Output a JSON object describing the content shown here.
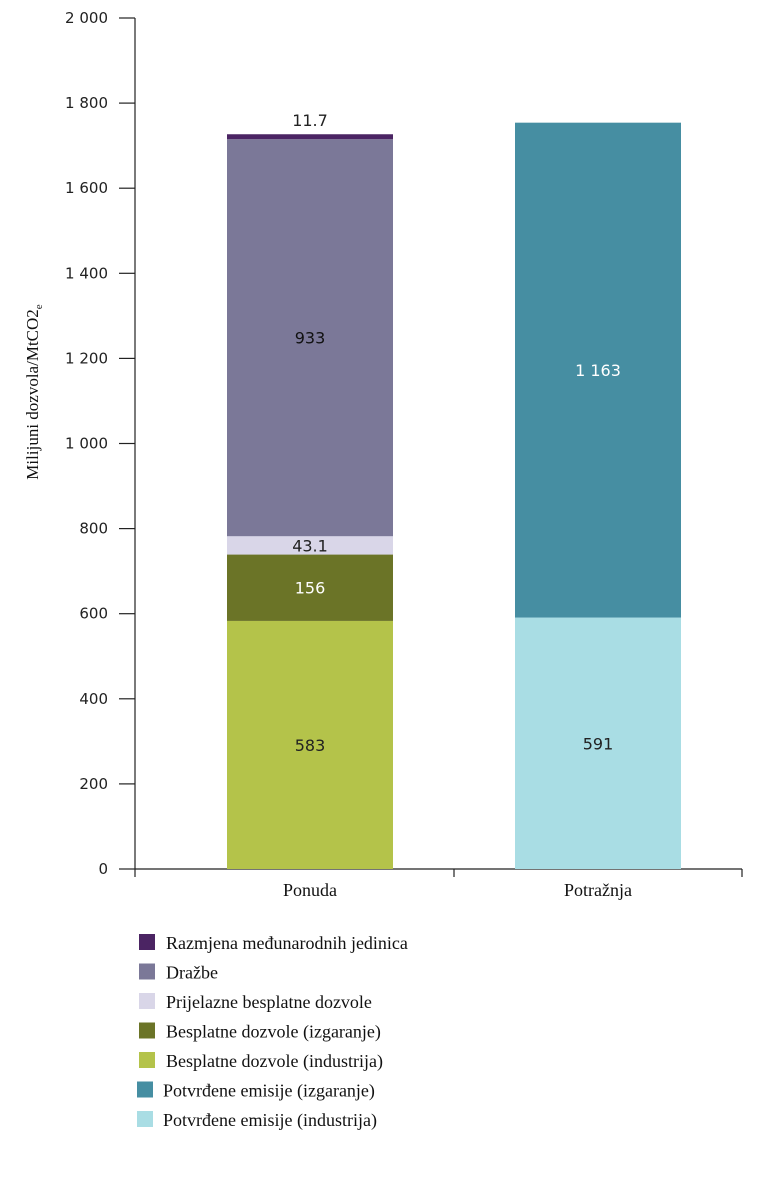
{
  "chart_data": {
    "type": "bar",
    "stacked": true,
    "ylabel_main": "Milijuni dozvola/MtCO2",
    "ylabel_sub": "e",
    "ylim": [
      0,
      2000
    ],
    "yticks": [
      0,
      200,
      400,
      600,
      800,
      1000,
      1200,
      1400,
      1600,
      1800,
      2000
    ],
    "ytick_labels": [
      "0",
      "200",
      "400",
      "600",
      "800",
      "1 000",
      "1 200",
      "1 400",
      "1 600",
      "1 800",
      "2 000"
    ],
    "categories": [
      "Ponuda",
      "Potražnja"
    ],
    "series": [
      {
        "name": "Besplatne dozvole (industrija)",
        "color": "#b4c34a",
        "values": [
          583,
          0
        ],
        "labels": [
          "583",
          ""
        ],
        "label_color": "#222222"
      },
      {
        "name": "Besplatne dozvole (izgaranje)",
        "color": "#6b7427",
        "values": [
          156,
          0
        ],
        "labels": [
          "156",
          ""
        ],
        "label_color": "#ffffff"
      },
      {
        "name": "Prijelazne besplatne dozvole",
        "color": "#d9d6e8",
        "values": [
          43.1,
          0
        ],
        "labels": [
          "43.1",
          ""
        ],
        "label_color": "#222222"
      },
      {
        "name": "Dražbe",
        "color": "#7b7898",
        "values": [
          933,
          0
        ],
        "labels": [
          "933",
          ""
        ],
        "label_color": "#111111"
      },
      {
        "name": "Razmjena međunarodnih jedinica",
        "color": "#4b2463",
        "values": [
          11.7,
          0
        ],
        "labels": [
          "11.7",
          ""
        ],
        "label_color": "#222222",
        "label_above": true
      },
      {
        "name": "Potvrđene emisije (industrija)",
        "color": "#a9dde4",
        "values": [
          0,
          591
        ],
        "labels": [
          "",
          "591"
        ],
        "label_color": "#222222"
      },
      {
        "name": "Potvrđene emisije (izgaranje)",
        "color": "#468ea2",
        "values": [
          0,
          1163
        ],
        "labels": [
          "",
          "1 163"
        ],
        "label_color": "#ffffff"
      }
    ],
    "legend": {
      "placement": "bottom",
      "order": [
        "Razmjena međunarodnih jedinica",
        "Dražbe",
        "Prijelazne besplatne dozvole",
        "Besplatne dozvole (izgaranje)",
        "Besplatne dozvole (industrija)",
        "Potvrđene emisije (izgaranje)",
        "Potvrđene emisije (industrija)"
      ]
    },
    "grid": false
  }
}
